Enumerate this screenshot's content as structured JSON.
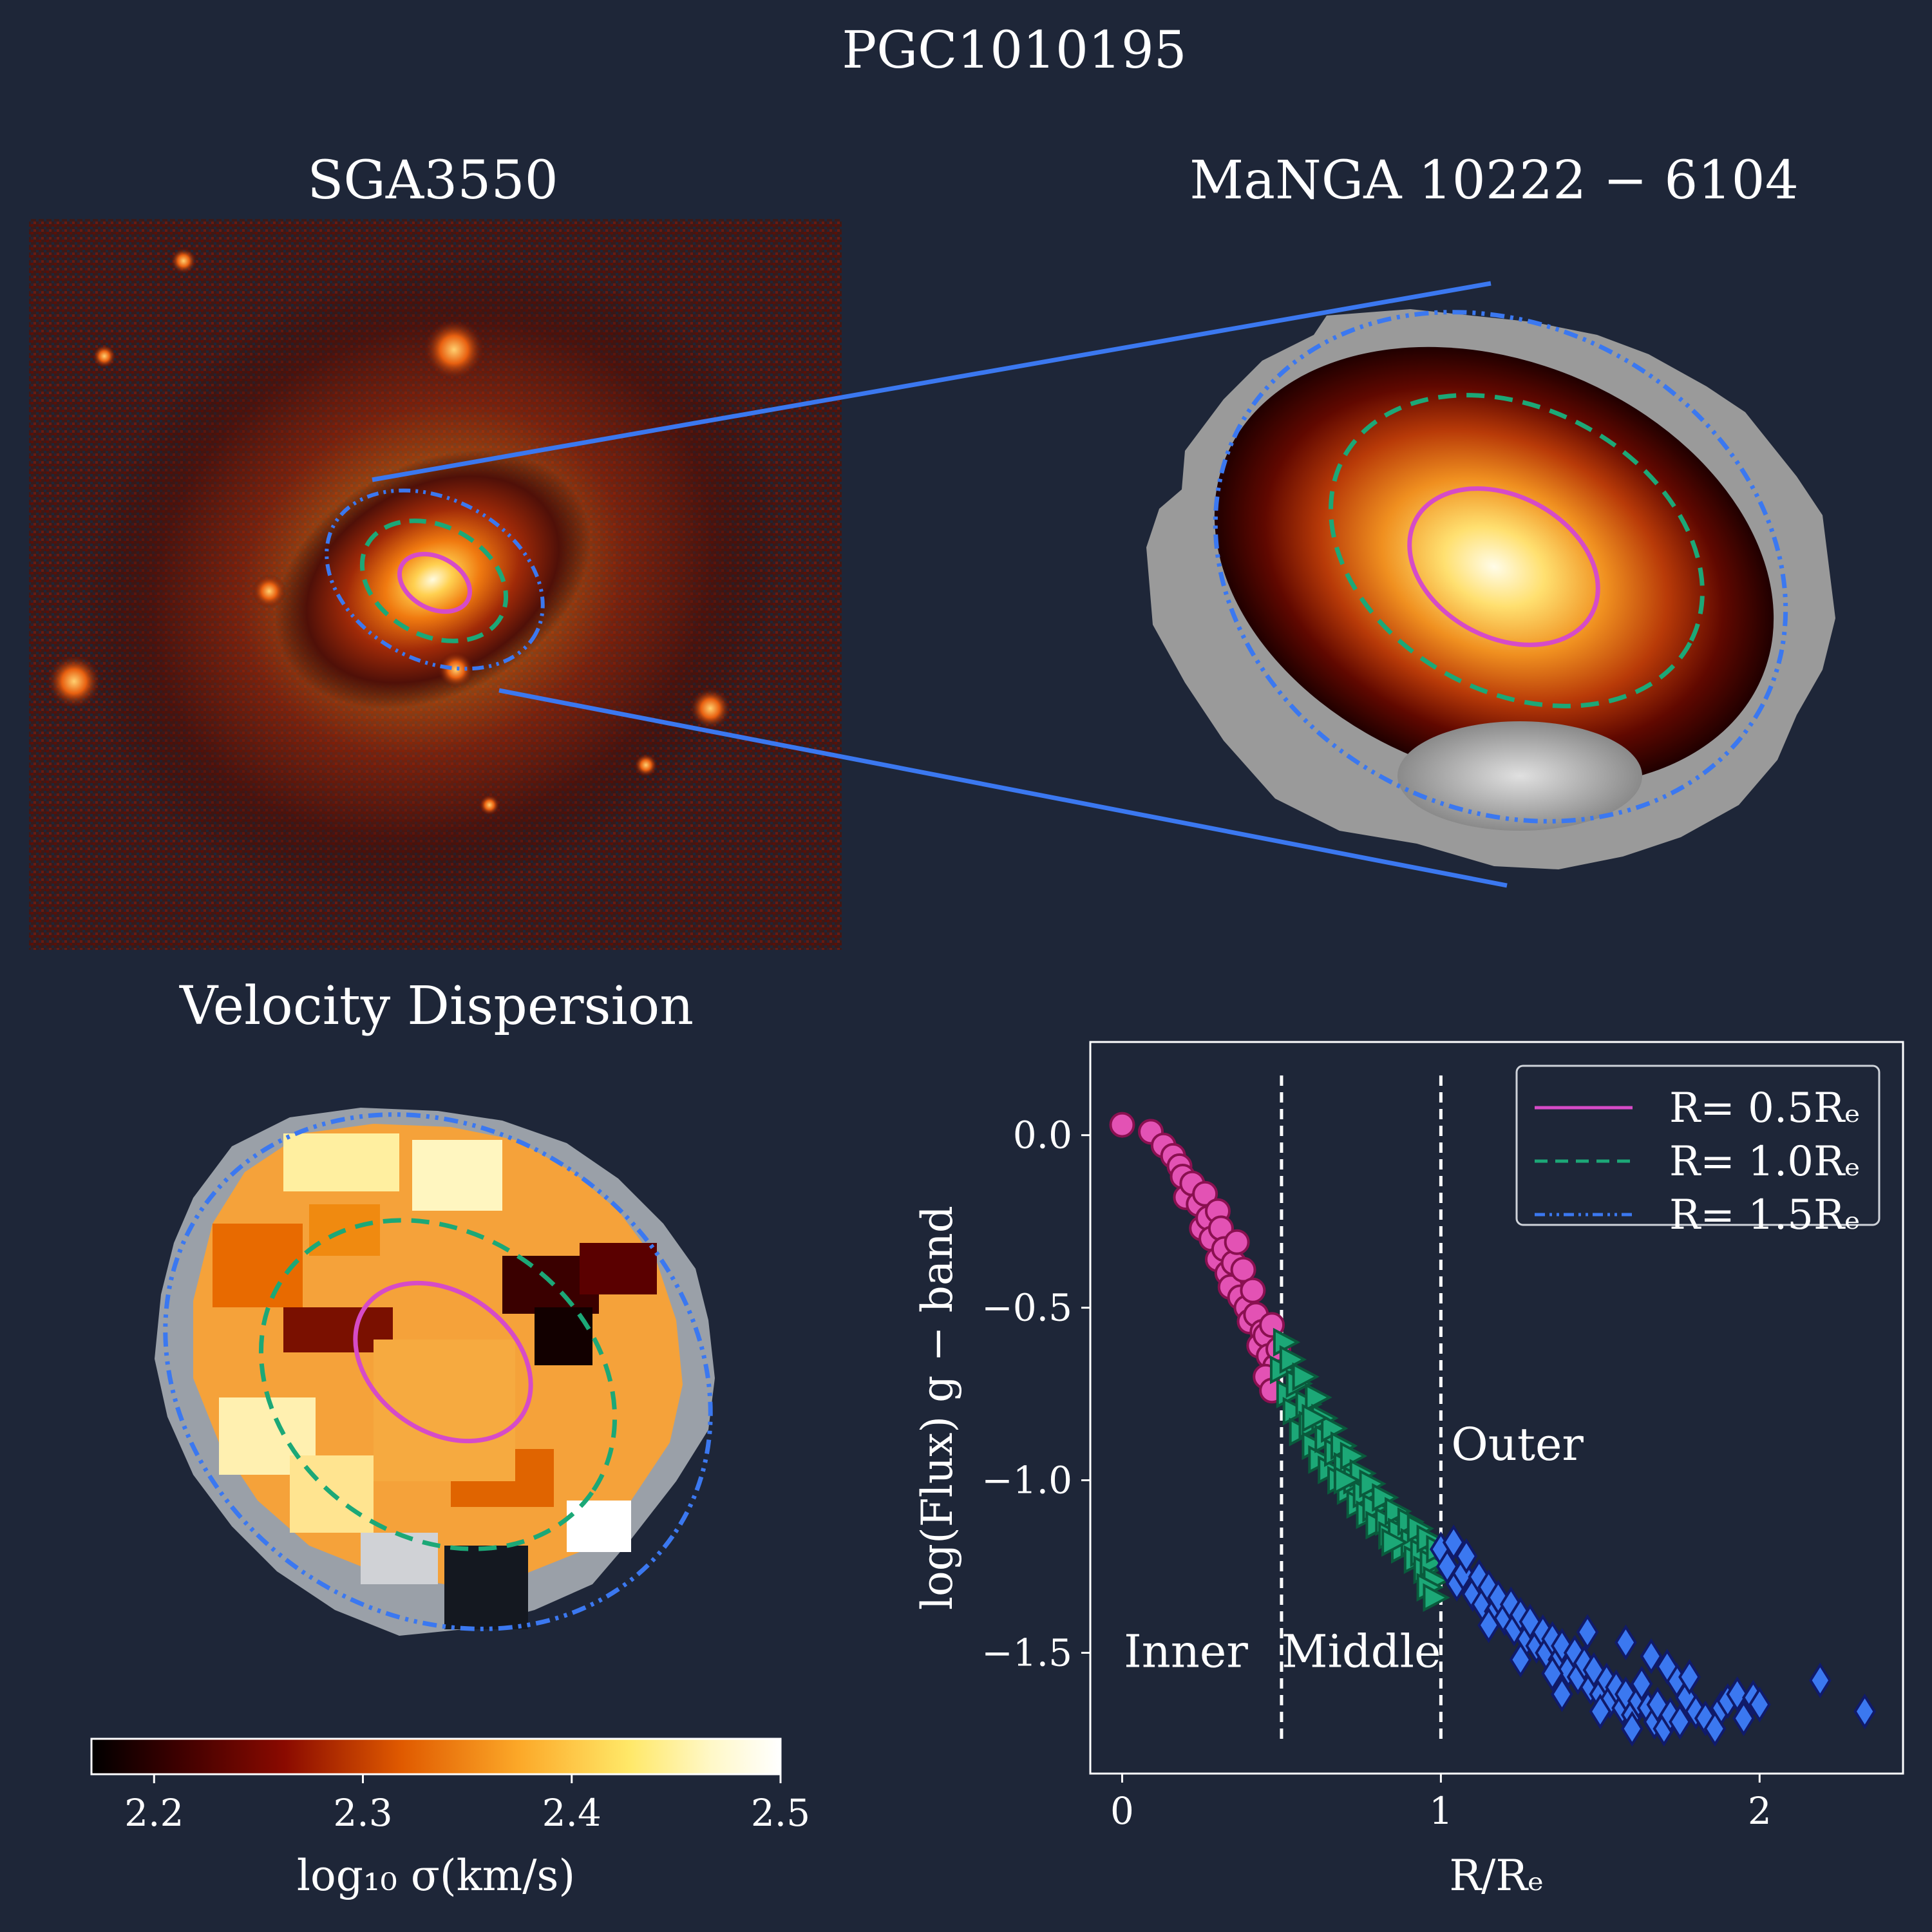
{
  "figure_title": "PGC1010195",
  "panels": {
    "sga_image": {
      "title": "SGA3550"
    },
    "manga_map": {
      "title": "MaNGA 10222 − 6104"
    },
    "velocity_dispersion": {
      "title": "Velocity Dispersion"
    }
  },
  "colorbar": {
    "label": "log₁₀ σ(km/s)",
    "range": [
      2.17,
      2.5
    ],
    "ticks": [
      "2.2",
      "2.3",
      "2.4",
      "2.5"
    ],
    "tick_values": [
      2.2,
      2.3,
      2.4,
      2.5
    ],
    "colors": [
      "#000000",
      "#5a0000",
      "#a01500",
      "#f07000",
      "#fca828",
      "#ffe060",
      "#fffad0",
      "#ffffff"
    ]
  },
  "colors": {
    "background": "#1e2638",
    "magenta": "#d64bc7",
    "green": "#1ca877",
    "blue": "#3b78f0",
    "white": "#ffffff"
  },
  "chart_data": {
    "type": "scatter",
    "title": "",
    "xlabel": "R/Rₑ",
    "ylabel": "log(Flux) g − band",
    "xlim": [
      -0.1,
      2.45
    ],
    "ylim": [
      -1.85,
      0.27
    ],
    "xticks": [
      0,
      1,
      2
    ],
    "xtick_labels": [
      "0",
      "1",
      "2"
    ],
    "yticks": [
      0.0,
      -0.5,
      -1.0,
      -1.5
    ],
    "ytick_labels": [
      "0.0",
      "−0.5",
      "−1.0",
      "−1.5"
    ],
    "vlines": [
      0.5,
      1.0
    ],
    "regions": [
      {
        "label": "Inner",
        "x": 0.2,
        "y": -1.5
      },
      {
        "label": "Middle",
        "x": 0.75,
        "y": -1.5
      },
      {
        "label": "Outer",
        "x": 1.24,
        "y": -0.9
      }
    ],
    "legend": {
      "position": "top-right",
      "entries": [
        {
          "label": "R= 0.5Rₑ",
          "color": "#d64bc7",
          "style": "solid"
        },
        {
          "label": "R= 1.0Rₑ",
          "color": "#1ca877",
          "style": "dashed"
        },
        {
          "label": "R= 1.5Rₑ",
          "color": "#3b78f0",
          "style": "dashdotdot"
        }
      ]
    },
    "series": [
      {
        "name": "Inner",
        "marker": "circle",
        "fill": "#e352b4",
        "edge": "#8a1050",
        "points": [
          [
            0.0,
            0.03
          ],
          [
            0.09,
            0.01
          ],
          [
            0.13,
            -0.03
          ],
          [
            0.16,
            -0.06
          ],
          [
            0.18,
            -0.09
          ],
          [
            0.19,
            -0.12
          ],
          [
            0.2,
            -0.18
          ],
          [
            0.22,
            -0.14
          ],
          [
            0.24,
            -0.2
          ],
          [
            0.26,
            -0.17
          ],
          [
            0.25,
            -0.27
          ],
          [
            0.27,
            -0.24
          ],
          [
            0.28,
            -0.3
          ],
          [
            0.3,
            -0.22
          ],
          [
            0.31,
            -0.27
          ],
          [
            0.3,
            -0.36
          ],
          [
            0.32,
            -0.33
          ],
          [
            0.33,
            -0.4
          ],
          [
            0.35,
            -0.37
          ],
          [
            0.34,
            -0.44
          ],
          [
            0.36,
            -0.31
          ],
          [
            0.38,
            -0.39
          ],
          [
            0.37,
            -0.47
          ],
          [
            0.39,
            -0.5
          ],
          [
            0.41,
            -0.45
          ],
          [
            0.4,
            -0.54
          ],
          [
            0.42,
            -0.52
          ],
          [
            0.44,
            -0.57
          ],
          [
            0.43,
            -0.61
          ],
          [
            0.45,
            -0.58
          ],
          [
            0.46,
            -0.64
          ],
          [
            0.47,
            -0.55
          ],
          [
            0.48,
            -0.67
          ],
          [
            0.49,
            -0.62
          ],
          [
            0.45,
            -0.7
          ],
          [
            0.47,
            -0.74
          ]
        ]
      },
      {
        "name": "Middle",
        "marker": "triangle",
        "fill": "#1ca877",
        "edge": "#0a5a3c",
        "points": [
          [
            0.5,
            -0.68
          ],
          [
            0.51,
            -0.6
          ],
          [
            0.52,
            -0.75
          ],
          [
            0.53,
            -0.65
          ],
          [
            0.54,
            -0.8
          ],
          [
            0.55,
            -0.72
          ],
          [
            0.56,
            -0.86
          ],
          [
            0.57,
            -0.7
          ],
          [
            0.58,
            -0.78
          ],
          [
            0.59,
            -0.84
          ],
          [
            0.6,
            -0.9
          ],
          [
            0.61,
            -0.76
          ],
          [
            0.62,
            -0.94
          ],
          [
            0.63,
            -0.82
          ],
          [
            0.64,
            -0.88
          ],
          [
            0.65,
            -0.97
          ],
          [
            0.66,
            -0.85
          ],
          [
            0.67,
            -0.92
          ],
          [
            0.68,
            -1.0
          ],
          [
            0.69,
            -0.9
          ],
          [
            0.7,
            -0.96
          ],
          [
            0.71,
            -1.03
          ],
          [
            0.72,
            -0.93
          ],
          [
            0.73,
            -1.0
          ],
          [
            0.74,
            -1.07
          ],
          [
            0.75,
            -0.98
          ],
          [
            0.76,
            -1.04
          ],
          [
            0.77,
            -1.1
          ],
          [
            0.78,
            -1.01
          ],
          [
            0.79,
            -1.08
          ],
          [
            0.8,
            -1.13
          ],
          [
            0.82,
            -1.05
          ],
          [
            0.83,
            -1.12
          ],
          [
            0.84,
            -1.16
          ],
          [
            0.86,
            -1.09
          ],
          [
            0.87,
            -1.15
          ],
          [
            0.88,
            -1.2
          ],
          [
            0.9,
            -1.12
          ],
          [
            0.91,
            -1.18
          ],
          [
            0.92,
            -1.23
          ],
          [
            0.93,
            -1.14
          ],
          [
            0.94,
            -1.21
          ],
          [
            0.95,
            -1.26
          ],
          [
            0.96,
            -1.17
          ],
          [
            0.97,
            -1.24
          ],
          [
            0.98,
            -1.29
          ],
          [
            0.99,
            -1.2
          ],
          [
            0.96,
            -1.31
          ],
          [
            0.98,
            -1.34
          ],
          [
            0.6,
            -0.82
          ],
          [
            0.7,
            -1.0
          ],
          [
            0.85,
            -1.18
          ]
        ]
      },
      {
        "name": "Outer",
        "marker": "diamond",
        "fill": "#3b78f0",
        "edge": "#101a6a",
        "points": [
          [
            1.0,
            -1.2
          ],
          [
            1.02,
            -1.25
          ],
          [
            1.04,
            -1.18
          ],
          [
            1.05,
            -1.3
          ],
          [
            1.07,
            -1.27
          ],
          [
            1.08,
            -1.22
          ],
          [
            1.1,
            -1.33
          ],
          [
            1.12,
            -1.28
          ],
          [
            1.13,
            -1.36
          ],
          [
            1.15,
            -1.31
          ],
          [
            1.17,
            -1.38
          ],
          [
            1.18,
            -1.34
          ],
          [
            1.2,
            -1.4
          ],
          [
            1.22,
            -1.36
          ],
          [
            1.23,
            -1.43
          ],
          [
            1.25,
            -1.39
          ],
          [
            1.27,
            -1.46
          ],
          [
            1.28,
            -1.41
          ],
          [
            1.3,
            -1.48
          ],
          [
            1.32,
            -1.44
          ],
          [
            1.33,
            -1.5
          ],
          [
            1.35,
            -1.46
          ],
          [
            1.37,
            -1.52
          ],
          [
            1.38,
            -1.48
          ],
          [
            1.4,
            -1.55
          ],
          [
            1.42,
            -1.5
          ],
          [
            1.43,
            -1.57
          ],
          [
            1.45,
            -1.53
          ],
          [
            1.47,
            -1.6
          ],
          [
            1.48,
            -1.55
          ],
          [
            1.5,
            -1.62
          ],
          [
            1.52,
            -1.58
          ],
          [
            1.53,
            -1.64
          ],
          [
            1.55,
            -1.6
          ],
          [
            1.57,
            -1.66
          ],
          [
            1.58,
            -1.62
          ],
          [
            1.6,
            -1.68
          ],
          [
            1.62,
            -1.64
          ],
          [
            1.63,
            -1.59
          ],
          [
            1.65,
            -1.66
          ],
          [
            1.67,
            -1.7
          ],
          [
            1.68,
            -1.65
          ],
          [
            1.7,
            -1.72
          ],
          [
            1.72,
            -1.68
          ],
          [
            1.75,
            -1.7
          ],
          [
            1.77,
            -1.63
          ],
          [
            1.8,
            -1.67
          ],
          [
            1.83,
            -1.69
          ],
          [
            1.86,
            -1.72
          ],
          [
            1.88,
            -1.66
          ],
          [
            1.9,
            -1.64
          ],
          [
            1.93,
            -1.62
          ],
          [
            1.95,
            -1.69
          ],
          [
            1.98,
            -1.63
          ],
          [
            2.0,
            -1.65
          ],
          [
            1.74,
            -1.58
          ],
          [
            1.78,
            -1.57
          ],
          [
            2.19,
            -1.58
          ],
          [
            2.33,
            -1.67
          ],
          [
            1.46,
            -1.44
          ],
          [
            1.58,
            -1.47
          ],
          [
            1.66,
            -1.51
          ],
          [
            1.71,
            -1.54
          ],
          [
            1.25,
            -1.52
          ],
          [
            1.35,
            -1.56
          ],
          [
            1.15,
            -1.42
          ],
          [
            1.5,
            -1.67
          ],
          [
            1.6,
            -1.72
          ],
          [
            1.38,
            -1.62
          ]
        ]
      }
    ]
  }
}
